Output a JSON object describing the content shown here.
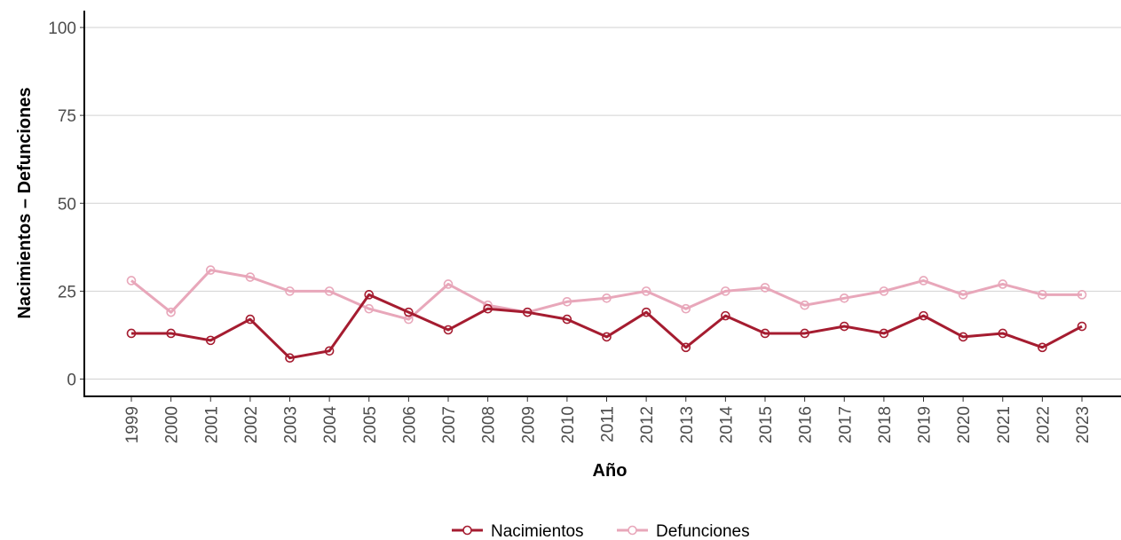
{
  "chart_data": {
    "type": "line",
    "title": "",
    "xlabel": "Año",
    "ylabel": "Nacimientos – Defunciones",
    "x": [
      "1999",
      "2000",
      "2001",
      "2002",
      "2003",
      "2004",
      "2005",
      "2006",
      "2007",
      "2008",
      "2009",
      "2010",
      "2011",
      "2012",
      "2013",
      "2014",
      "2015",
      "2016",
      "2017",
      "2018",
      "2019",
      "2020",
      "2021",
      "2022",
      "2023"
    ],
    "yticks": [
      "0",
      "25",
      "50",
      "75",
      "100"
    ],
    "ylim": [
      0,
      100
    ],
    "grid": "horizontal major",
    "legend_position": "bottom",
    "series": [
      {
        "name": "Nacimientos",
        "color": "#a51c30",
        "values": [
          13,
          13,
          11,
          17,
          6,
          8,
          24,
          19,
          14,
          20,
          19,
          17,
          12,
          19,
          9,
          18,
          13,
          13,
          15,
          13,
          18,
          12,
          13,
          9,
          15
        ]
      },
      {
        "name": "Defunciones",
        "color": "#e8a7ba",
        "values": [
          28,
          19,
          31,
          29,
          25,
          25,
          20,
          17,
          27,
          21,
          19,
          22,
          23,
          25,
          20,
          25,
          26,
          21,
          23,
          25,
          28,
          24,
          27,
          24,
          24
        ]
      }
    ]
  }
}
